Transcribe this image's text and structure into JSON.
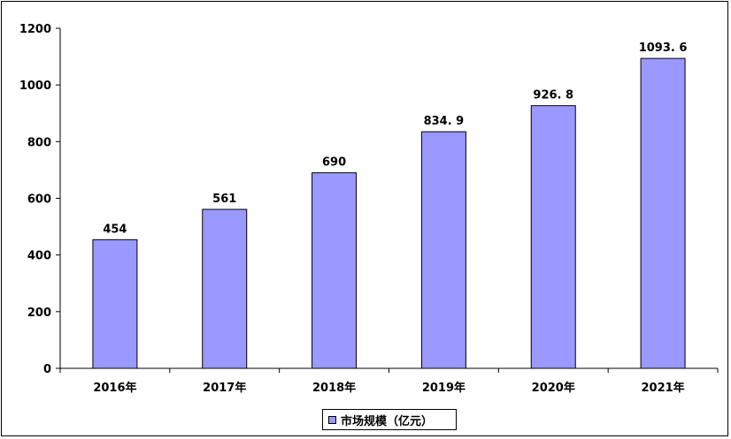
{
  "chart_data": {
    "type": "bar",
    "categories": [
      "2016年",
      "2017年",
      "2018年",
      "2019年",
      "2020年",
      "2021年"
    ],
    "series": [
      {
        "name": "市场规模（亿元）",
        "values": [
          454,
          561,
          690,
          834.9,
          926.8,
          1093.6
        ],
        "labels": [
          "454",
          "561",
          "690",
          "834. 9",
          "926. 8",
          "1093. 6"
        ],
        "color": "#9999ff"
      }
    ],
    "ylim": [
      0,
      1200
    ],
    "yticks": [
      "0",
      "200",
      "400",
      "600",
      "800",
      "1000",
      "1200"
    ],
    "ytick_values": [
      0,
      200,
      400,
      600,
      800,
      1000,
      1200
    ],
    "legend": "bottom-center",
    "grid": false
  }
}
